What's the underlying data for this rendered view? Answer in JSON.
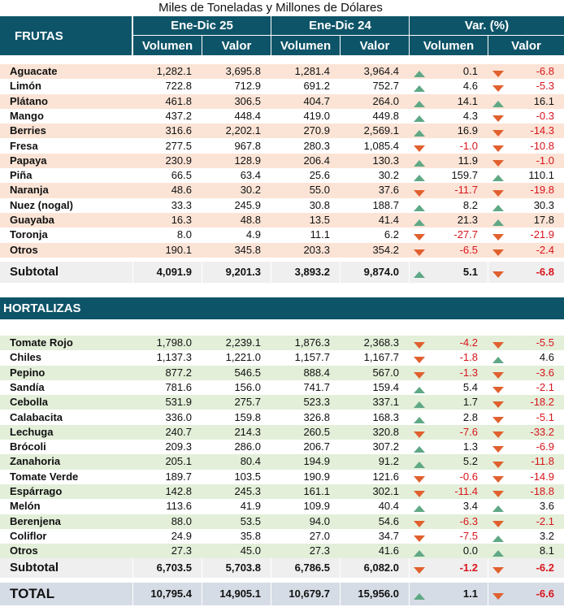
{
  "header": {
    "title": "Miles de Toneladas y Millones de Dólares",
    "groups": [
      "Ene-Dic 25",
      "Ene-Dic 24",
      "Var. (%)"
    ],
    "subheaders": [
      "Volumen",
      "Valor",
      "Volumen",
      "Valor",
      "Volumen",
      "Valor"
    ]
  },
  "frutas": {
    "title": "FRUTAS",
    "rows": [
      [
        "Aguacate",
        "1,282.1",
        "3,695.8",
        "1,281.4",
        "3,964.4",
        "0.1",
        "-6.8"
      ],
      [
        "Limón",
        "722.8",
        "712.9",
        "691.2",
        "752.7",
        "4.6",
        "-5.3"
      ],
      [
        "Plátano",
        "461.8",
        "306.5",
        "404.7",
        "264.0",
        "14.1",
        "16.1"
      ],
      [
        "Mango",
        "437.2",
        "448.4",
        "419.0",
        "449.8",
        "4.3",
        "-0.3"
      ],
      [
        "Berries",
        "316.6",
        "2,202.1",
        "270.9",
        "2,569.1",
        "16.9",
        "-14.3"
      ],
      [
        "Fresa",
        "277.5",
        "967.8",
        "280.3",
        "1,085.4",
        "-1.0",
        "-10.8"
      ],
      [
        "Papaya",
        "230.9",
        "128.9",
        "206.4",
        "130.3",
        "11.9",
        "-1.0"
      ],
      [
        "Piña",
        "66.5",
        "63.4",
        "25.6",
        "30.2",
        "159.7",
        "110.1"
      ],
      [
        "Naranja",
        "48.6",
        "30.2",
        "55.0",
        "37.6",
        "-11.7",
        "-19.8"
      ],
      [
        "Nuez (nogal)",
        "33.3",
        "245.9",
        "30.8",
        "188.7",
        "8.2",
        "30.3"
      ],
      [
        "Guayaba",
        "16.3",
        "48.8",
        "13.5",
        "41.4",
        "21.3",
        "17.8"
      ],
      [
        "Toronja",
        "8.0",
        "4.9",
        "11.1",
        "6.2",
        "-27.7",
        "-21.9"
      ],
      [
        "Otros",
        "190.1",
        "345.8",
        "203.3",
        "354.2",
        "-6.5",
        "-2.4"
      ]
    ],
    "subtotal": [
      "Subtotal",
      "4,091.9",
      "9,201.3",
      "3,893.2",
      "9,874.0",
      "5.1",
      "-6.8"
    ]
  },
  "hortalizas": {
    "title": "HORTALIZAS",
    "rows": [
      [
        "Tomate Rojo",
        "1,798.0",
        "2,239.1",
        "1,876.3",
        "2,368.3",
        "-4.2",
        "-5.5"
      ],
      [
        "Chiles",
        "1,137.3",
        "1,221.0",
        "1,157.7",
        "1,167.7",
        "-1.8",
        "4.6"
      ],
      [
        "Pepino",
        "877.2",
        "546.5",
        "888.4",
        "567.0",
        "-1.3",
        "-3.6"
      ],
      [
        "Sandía",
        "781.6",
        "156.0",
        "741.7",
        "159.4",
        "5.4",
        "-2.1"
      ],
      [
        "Cebolla",
        "531.9",
        "275.7",
        "523.3",
        "337.1",
        "1.7",
        "-18.2"
      ],
      [
        "Calabacita",
        "336.0",
        "159.8",
        "326.8",
        "168.3",
        "2.8",
        "-5.1"
      ],
      [
        "Lechuga",
        "240.7",
        "214.3",
        "260.5",
        "320.8",
        "-7.6",
        "-33.2"
      ],
      [
        "Brócoli",
        "209.3",
        "286.0",
        "206.7",
        "307.2",
        "1.3",
        "-6.9"
      ],
      [
        "Zanahoria",
        "205.1",
        "80.4",
        "194.9",
        "91.2",
        "5.2",
        "-11.8"
      ],
      [
        "Tomate Verde",
        "189.7",
        "103.5",
        "190.9",
        "121.6",
        "-0.6",
        "-14.9"
      ],
      [
        "Espárrago",
        "142.8",
        "245.3",
        "161.1",
        "302.1",
        "-11.4",
        "-18.8"
      ],
      [
        "Melón",
        "113.6",
        "41.9",
        "109.9",
        "40.4",
        "3.4",
        "3.6"
      ],
      [
        "Berenjena",
        "88.0",
        "53.5",
        "94.0",
        "54.6",
        "-6.3",
        "-2.1"
      ],
      [
        "Coliflor",
        "24.9",
        "35.8",
        "27.0",
        "34.7",
        "-7.5",
        "3.2"
      ],
      [
        "Otros",
        "27.3",
        "45.0",
        "27.3",
        "41.6",
        "0.0",
        "8.1"
      ]
    ],
    "subtotal": [
      "Subtotal",
      "6,703.5",
      "5,703.8",
      "6,786.5",
      "6,082.0",
      "-1.2",
      "-6.2"
    ]
  },
  "total": [
    "TOTAL",
    "10,795.4",
    "14,905.1",
    "10,679.7",
    "15,956.0",
    "1.1",
    "-6.6"
  ]
}
